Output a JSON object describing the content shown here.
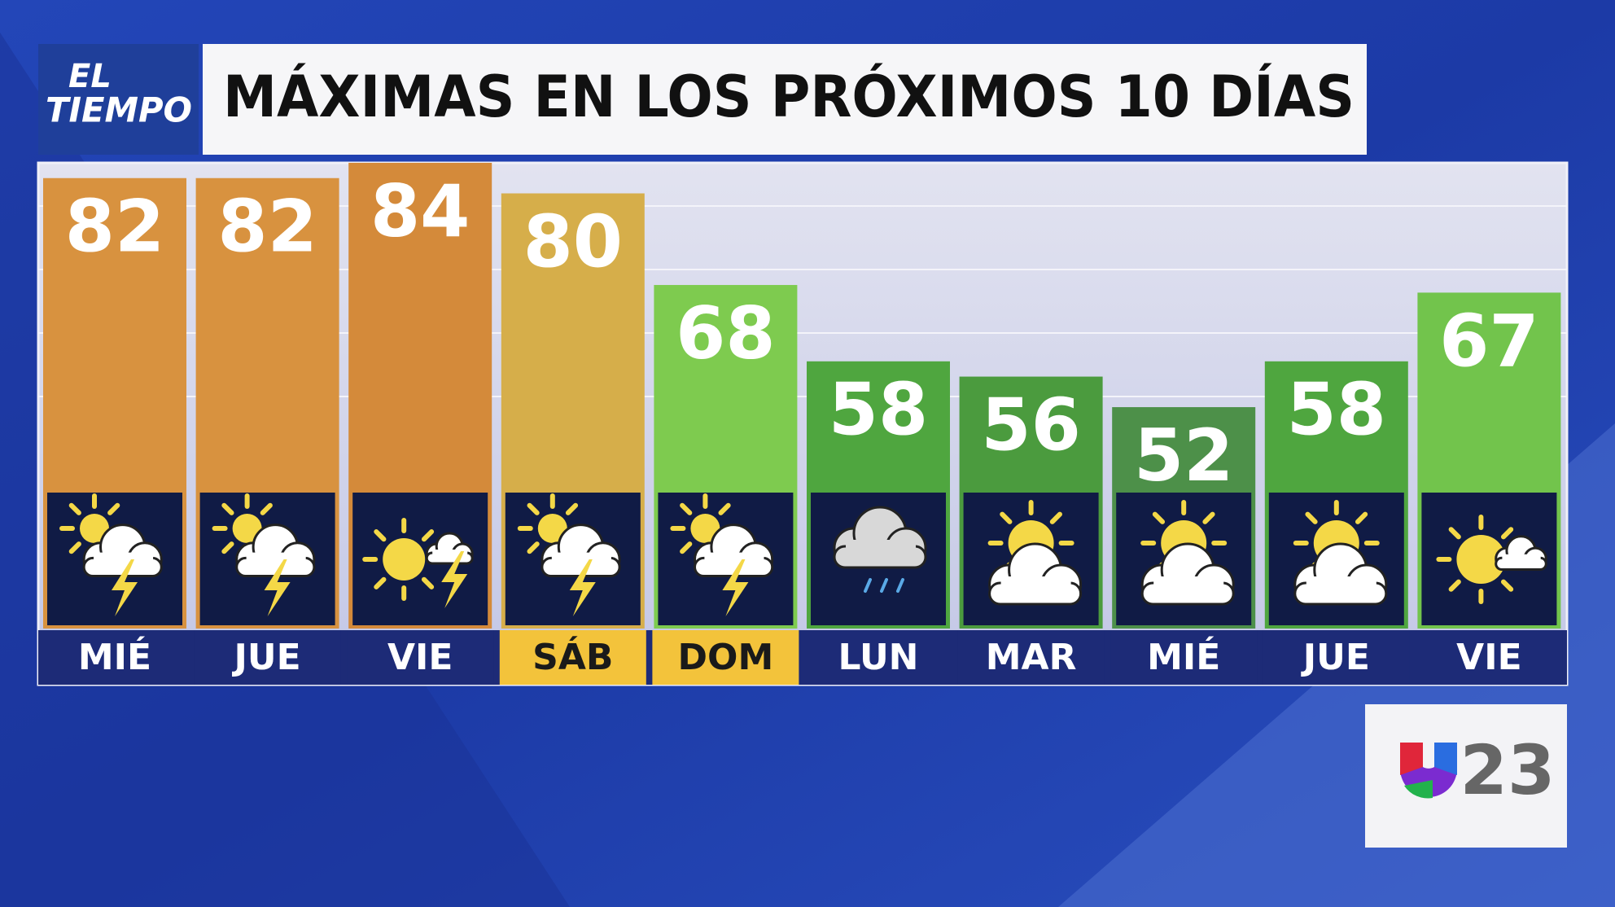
{
  "chart_data": {
    "type": "bar",
    "title": "MÁXIMAS EN LOS PRÓXIMOS 10 DÍAS",
    "categories": [
      "MIÉ",
      "JUE",
      "VIE",
      "SÁB",
      "DOM",
      "LUN",
      "MAR",
      "MIÉ",
      "JUE",
      "VIE"
    ],
    "values": [
      82,
      82,
      84,
      80,
      68,
      58,
      56,
      52,
      58,
      67
    ],
    "colors": [
      "#d8923f",
      "#d8923f",
      "#d48a3a",
      "#d6ae4a",
      "#7ecb4f",
      "#4fa63f",
      "#4b9b3e",
      "#4d9049",
      "#4fa63f",
      "#72c44c"
    ],
    "label_colors": [
      "#1d2b77",
      "#1d2b77",
      "#1d2b77",
      "#f3c33b",
      "#f3c33b",
      "#1d2b77",
      "#1d2b77",
      "#1d2b77",
      "#1d2b77",
      "#1d2b77"
    ],
    "ylim": [
      23,
      84
    ]
  },
  "branding": {
    "program": [
      "EL",
      "TIEMPO"
    ],
    "channel": "23"
  }
}
